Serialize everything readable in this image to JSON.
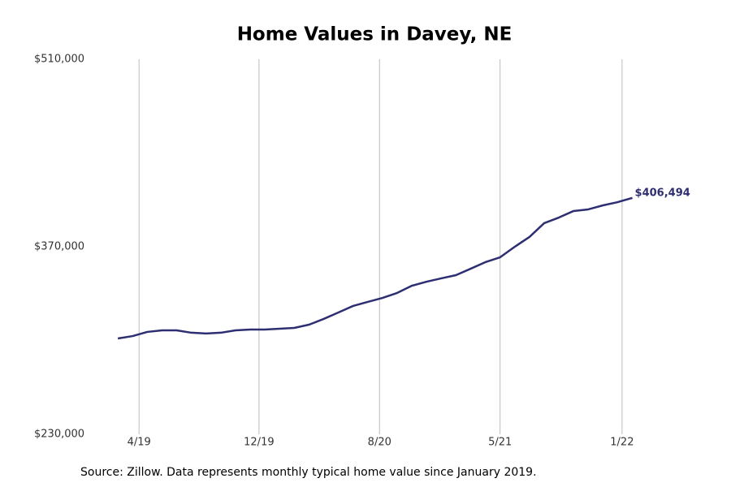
{
  "chart_data": {
    "type": "line",
    "title": "Home Values in Davey, NE",
    "source": "Source: Zillow. Data represents monthly typical home value since January 2019.",
    "x": [
      0,
      1,
      2,
      3,
      4,
      5,
      6,
      7,
      8,
      9,
      10,
      11,
      12,
      13,
      14,
      15,
      16,
      17,
      18,
      19,
      20,
      21,
      22,
      23,
      24,
      25,
      26,
      27,
      28,
      29,
      30,
      31,
      32,
      33,
      34,
      35
    ],
    "series": [
      {
        "name": "Home value",
        "color": "#2e2e72",
        "values": [
          301500,
          303300,
          306400,
          307600,
          307600,
          305800,
          305200,
          305800,
          307600,
          308200,
          308200,
          308800,
          309400,
          311800,
          316100,
          320900,
          325800,
          328800,
          331800,
          335500,
          340900,
          343900,
          346400,
          348800,
          353600,
          358500,
          362100,
          370000,
          377300,
          387600,
          391800,
          396700,
          397900,
          400900,
          403300,
          406494
        ],
        "value_labels": [
          null,
          null,
          null,
          null,
          null,
          null,
          null,
          null,
          null,
          null,
          null,
          null,
          null,
          null,
          null,
          null,
          null,
          null,
          null,
          null,
          null,
          null,
          null,
          null,
          null,
          null,
          null,
          null,
          null,
          null,
          null,
          null,
          null,
          null,
          null,
          "$406,494"
        ]
      }
    ],
    "xlim": [
      -1.5,
      39.5
    ],
    "xticks": [
      {
        "value": 1.44,
        "label": "4/19"
      },
      {
        "value": 9.6,
        "label": "12/19"
      },
      {
        "value": 17.8,
        "label": "8/20"
      },
      {
        "value": 26.0,
        "label": "5/21"
      },
      {
        "value": 34.3,
        "label": "1/22"
      }
    ],
    "ylim": [
      230000,
      510000
    ],
    "yticks": [
      {
        "value": 230000,
        "label": "$230,000"
      },
      {
        "value": 370000,
        "label": "$370,000"
      },
      {
        "value": 510000,
        "label": "$510,000"
      }
    ],
    "grid": "x"
  }
}
